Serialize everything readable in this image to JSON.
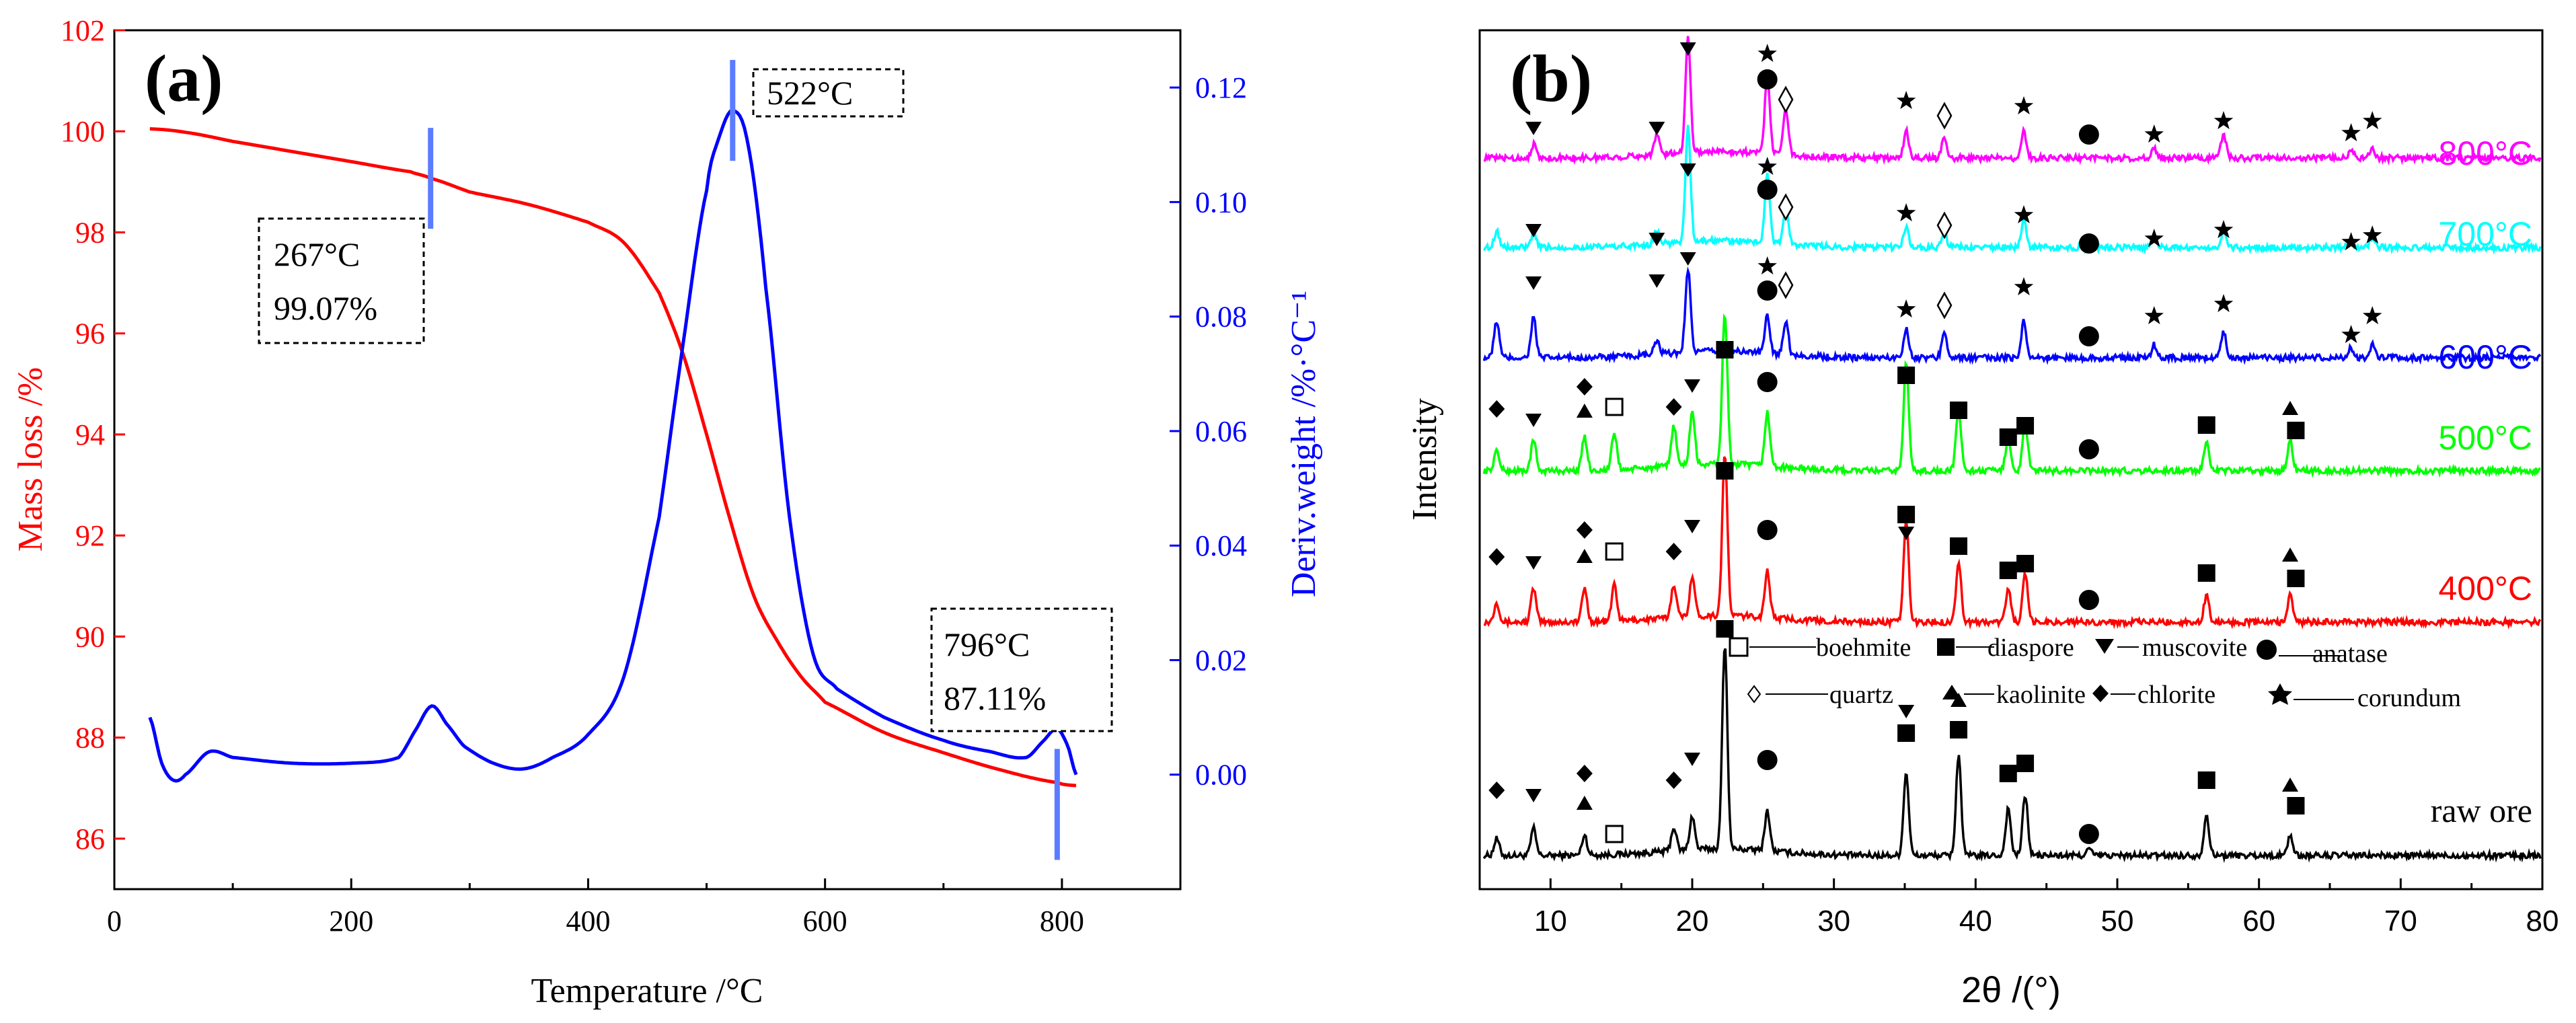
{
  "colors": {
    "mass": "#ff0000",
    "deriv": "#0000ff",
    "marker": "#5b7cff",
    "t800": "#ff00ff",
    "t700": "#00ffff",
    "t600": "#0000ff",
    "t500": "#00ff00",
    "t400": "#ff0000",
    "raw": "#000000"
  },
  "chart_data": [
    {
      "type": "line",
      "panel_label": "(a)",
      "xlabel": "Temperature /°C",
      "ylabel": "Mass loss /%",
      "y2label": "Deriv.weight /%·°C⁻¹",
      "xlim": [
        0,
        900
      ],
      "ylim": [
        85,
        102
      ],
      "y2lim": [
        -0.02,
        0.13
      ],
      "xticks": [
        "0",
        "200",
        "400",
        "600",
        "800"
      ],
      "yticks": [
        "86",
        "88",
        "90",
        "92",
        "94",
        "96",
        "98",
        "100",
        "102"
      ],
      "y2ticks": [
        "0.00",
        "0.02",
        "0.04",
        "0.06",
        "0.08",
        "0.10",
        "0.12"
      ],
      "series": [
        {
          "name": "Mass loss",
          "axis": "left",
          "x": [
            30,
            60,
            100,
            150,
            200,
            250,
            267,
            300,
            350,
            400,
            430,
            460,
            480,
            500,
            520,
            540,
            560,
            580,
            600,
            650,
            700,
            750,
            796,
            812
          ],
          "y": [
            100.05,
            99.98,
            99.8,
            99.6,
            99.4,
            99.2,
            99.07,
            98.8,
            98.55,
            98.2,
            97.8,
            96.8,
            95.6,
            94.0,
            92.3,
            90.8,
            89.9,
            89.2,
            88.7,
            88.1,
            87.7,
            87.35,
            87.11,
            87.05
          ]
        },
        {
          "name": "Deriv.weight",
          "axis": "right",
          "x": [
            30,
            40,
            50,
            60,
            80,
            100,
            150,
            200,
            240,
            255,
            268,
            280,
            295,
            320,
            345,
            370,
            400,
            430,
            460,
            480,
            500,
            510,
            522,
            535,
            550,
            570,
            590,
            610,
            650,
            700,
            740,
            770,
            785,
            796,
            805,
            812
          ],
          "y": [
            0.01,
            0.002,
            -0.001,
            0.0,
            0.004,
            0.003,
            0.002,
            0.002,
            0.003,
            0.008,
            0.012,
            0.009,
            0.005,
            0.002,
            0.001,
            0.003,
            0.007,
            0.017,
            0.045,
            0.075,
            0.102,
            0.111,
            0.116,
            0.11,
            0.085,
            0.045,
            0.021,
            0.015,
            0.01,
            0.006,
            0.004,
            0.003,
            0.006,
            0.008,
            0.005,
            0.0
          ]
        }
      ],
      "annotations": [
        {
          "x": 267,
          "y": 99.07,
          "lines": [
            "267°C",
            "99.07%"
          ]
        },
        {
          "x": 522,
          "deriv": 0.116,
          "lines": [
            "522°C"
          ]
        },
        {
          "x": 796,
          "y": 87.11,
          "lines": [
            "796°C",
            "87.11%"
          ]
        }
      ]
    },
    {
      "type": "line",
      "panel_label": "(b)",
      "xlabel": "2θ /(°)",
      "ylabel": "Intensity",
      "xlim": [
        5,
        80
      ],
      "xticks": [
        "10",
        "20",
        "30",
        "40",
        "50",
        "60",
        "70",
        "80"
      ],
      "series": [
        {
          "name": "raw ore",
          "peaks": [
            [
              6.2,
              25
            ],
            [
              8.8,
              40
            ],
            [
              12.4,
              30
            ],
            [
              18.7,
              35
            ],
            [
              20.0,
              50
            ],
            [
              22.3,
              305
            ],
            [
              25.3,
              60
            ],
            [
              35.1,
              125
            ],
            [
              38.8,
              150
            ],
            [
              42.3,
              70
            ],
            [
              43.5,
              90
            ],
            [
              48.0,
              10
            ],
            [
              56.3,
              60
            ],
            [
              62.2,
              30
            ]
          ]
        },
        {
          "name": "400°C",
          "peaks": [
            [
              6.2,
              30
            ],
            [
              8.8,
              50
            ],
            [
              12.4,
              50
            ],
            [
              14.5,
              55
            ],
            [
              18.7,
              50
            ],
            [
              20.0,
              60
            ],
            [
              22.3,
              240
            ],
            [
              25.3,
              70
            ],
            [
              35.1,
              150
            ],
            [
              38.8,
              90
            ],
            [
              42.3,
              50
            ],
            [
              43.5,
              70
            ],
            [
              56.3,
              40
            ],
            [
              62.2,
              40
            ]
          ]
        },
        {
          "name": "500°C",
          "peaks": [
            [
              6.2,
              30
            ],
            [
              8.8,
              45
            ],
            [
              12.4,
              50
            ],
            [
              14.5,
              55
            ],
            [
              18.7,
              60
            ],
            [
              20.0,
              80
            ],
            [
              22.3,
              225
            ],
            [
              25.3,
              80
            ],
            [
              35.1,
              160
            ],
            [
              38.8,
              90
            ],
            [
              42.3,
              50
            ],
            [
              43.5,
              70
            ],
            [
              56.3,
              40
            ],
            [
              62.2,
              45
            ]
          ]
        },
        {
          "name": "600°C",
          "peaks": [
            [
              6.2,
              55
            ],
            [
              8.8,
              60
            ],
            [
              17.5,
              20
            ],
            [
              19.7,
              125
            ],
            [
              25.3,
              55
            ],
            [
              26.6,
              50
            ],
            [
              35.1,
              45
            ],
            [
              37.8,
              40
            ],
            [
              43.4,
              55
            ],
            [
              52.6,
              20
            ],
            [
              57.5,
              40
            ],
            [
              66.5,
              15
            ],
            [
              68.0,
              20
            ]
          ]
        },
        {
          "name": "700°C",
          "peaks": [
            [
              6.2,
              25
            ],
            [
              8.8,
              20
            ],
            [
              17.5,
              20
            ],
            [
              19.7,
              170
            ],
            [
              25.3,
              100
            ],
            [
              26.6,
              55
            ],
            [
              35.1,
              30
            ],
            [
              37.8,
              20
            ],
            [
              43.4,
              40
            ],
            [
              52.6,
              15
            ],
            [
              57.5,
              25
            ],
            [
              66.5,
              10
            ],
            [
              68.0,
              15
            ]
          ]
        },
        {
          "name": "800°C",
          "peaks": [
            [
              8.8,
              20
            ],
            [
              17.5,
              30
            ],
            [
              19.7,
              170
            ],
            [
              25.3,
              115
            ],
            [
              26.6,
              70
            ],
            [
              35.1,
              40
            ],
            [
              37.8,
              30
            ],
            [
              43.4,
              40
            ],
            [
              52.6,
              15
            ],
            [
              57.5,
              35
            ],
            [
              66.5,
              12
            ],
            [
              68.0,
              15
            ]
          ]
        }
      ],
      "legend": {
        "row1": [
          "boehmite",
          "diaspore",
          "muscovite",
          "anatase"
        ],
        "row2": [
          "quartz",
          "kaolinite",
          "chlorite",
          "corundum"
        ]
      }
    }
  ],
  "legend_text": {
    "boehmite": "boehmite",
    "diaspore": "diaspore",
    "muscovite": "muscovite",
    "anatase": "anatase",
    "quartz": "quartz",
    "kaolinite": "kaolinite",
    "chlorite": "chlorite",
    "corundum": "corundum"
  }
}
